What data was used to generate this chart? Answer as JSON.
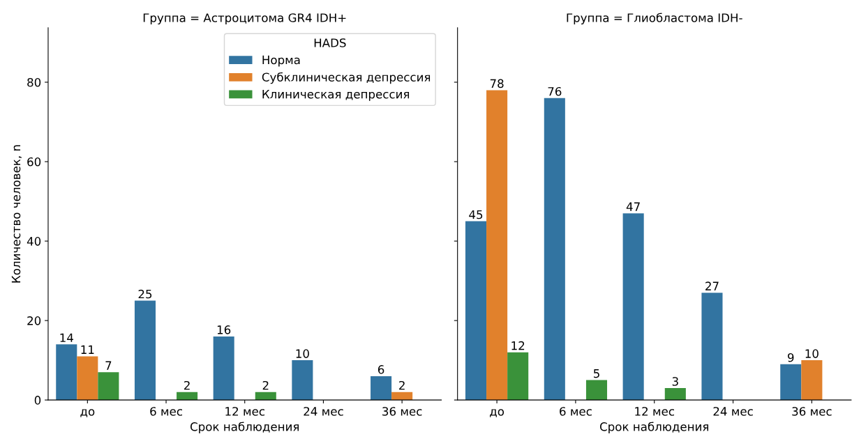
{
  "chart_data": [
    {
      "type": "bar",
      "title": "Группа = Астроцитома GR4 IDH+",
      "xlabel": "Срок наблюдения",
      "ylabel": "Количество человек, n",
      "categories": [
        "до",
        "6 мес",
        "12 мес",
        "24 мес",
        "36 мес"
      ],
      "series": [
        {
          "name": "Норма",
          "color": "#3274a1",
          "values": [
            14,
            25,
            16,
            10,
            6
          ]
        },
        {
          "name": "Субклиническая депрессия",
          "color": "#e1812c",
          "values": [
            11,
            null,
            null,
            null,
            2
          ]
        },
        {
          "name": "Клиническая депрессия",
          "color": "#3a923a",
          "values": [
            7,
            2,
            2,
            null,
            null
          ]
        }
      ],
      "ylim": [
        0,
        93.7
      ],
      "yticks": [
        0,
        20,
        40,
        60,
        80
      ],
      "data_labels": true,
      "legend": "top right",
      "legend_title": "HADS",
      "grid": false
    },
    {
      "type": "bar",
      "title": "Группа = Глиобластома IDH-",
      "xlabel": "Срок наблюдения",
      "categories": [
        "до",
        "6 мес",
        "12 мес",
        "24 мес",
        "36 мес"
      ],
      "series": [
        {
          "color": "#3274a1",
          "values": [
            45,
            76,
            47,
            27,
            9
          ]
        },
        {
          "color": "#e1812c",
          "values": [
            78,
            null,
            null,
            null,
            10
          ]
        },
        {
          "color": "#3a923a",
          "values": [
            12,
            5,
            3,
            null,
            null
          ]
        }
      ],
      "ylim": [
        0,
        93.7
      ],
      "yticks": [
        0,
        20,
        40,
        60,
        80
      ],
      "tick_labels": "x",
      "data_labels": true,
      "grid": false
    }
  ]
}
